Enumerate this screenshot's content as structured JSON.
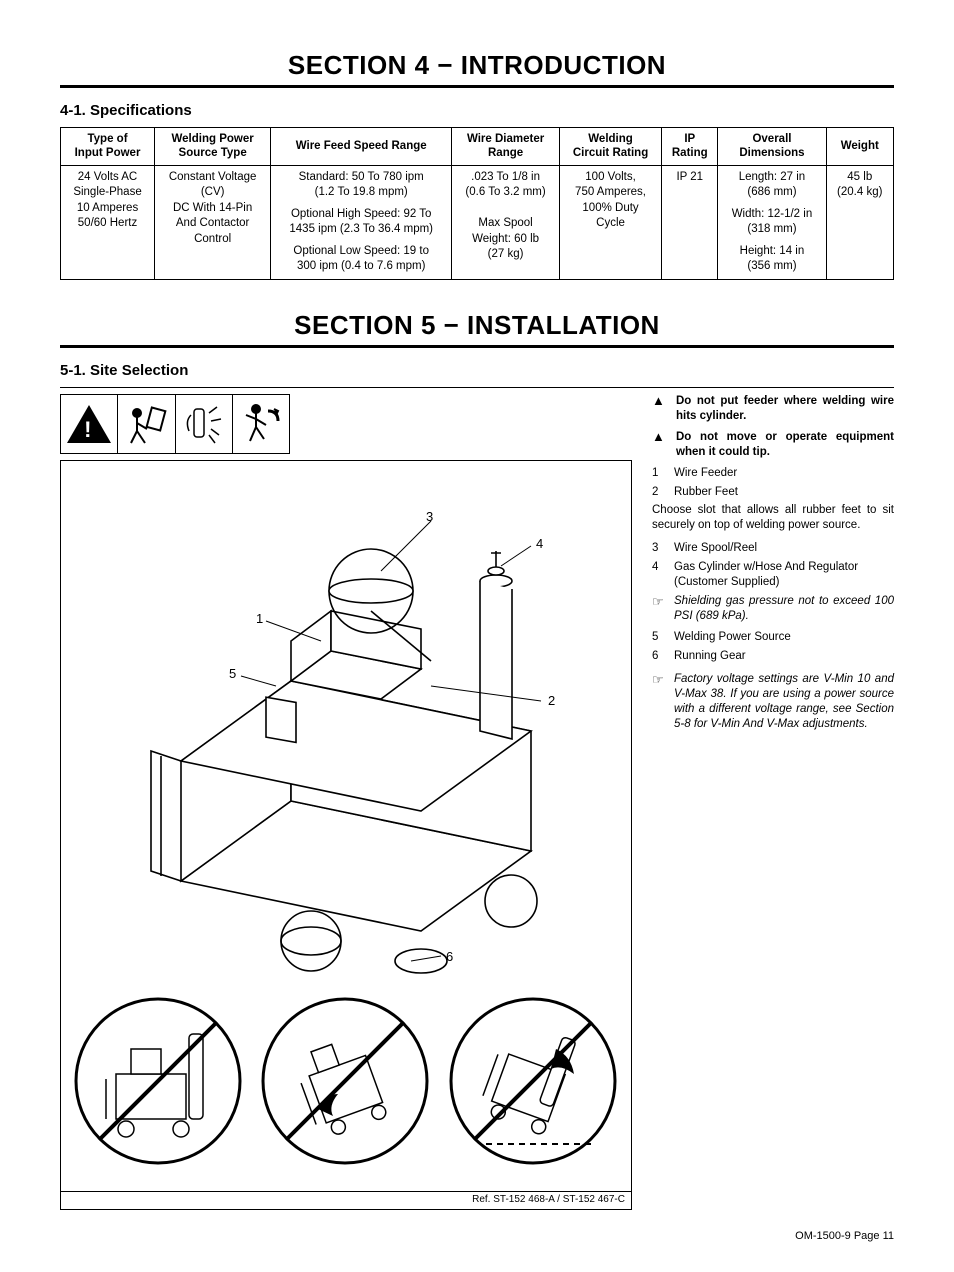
{
  "section4": {
    "title": "SECTION 4 − INTRODUCTION",
    "sub": "4-1.   Specifications"
  },
  "spec_table": {
    "headers": [
      "Type of\nInput Power",
      "Welding Power\nSource Type",
      "Wire Feed Speed Range",
      "Wire Diameter\nRange",
      "Welding\nCircuit Rating",
      "IP\nRating",
      "Overall\nDimensions",
      "Weight"
    ],
    "row": {
      "input_power": "24 Volts AC\nSingle-Phase\n10 Amperes\n50/60 Hertz",
      "source_type": "Constant Voltage\n(CV)\nDC With 14-Pin\nAnd Contactor\nControl",
      "feed1": "Standard: 50 To 780 ipm\n(1.2 To 19.8 mpm)",
      "feed2": "Optional High Speed: 92 To\n1435 ipm (2.3 To 36.4 mpm)",
      "feed3": "Optional Low Speed: 19 to\n300 ipm (0.4 to 7.6 mpm)",
      "wire_dia": ".023 To 1/8 in\n(0.6 To 3.2 mm)\n\nMax Spool\nWeight: 60 lb\n(27 kg)",
      "circuit": "100 Volts,\n750 Amperes,\n100% Duty\nCycle",
      "ip": "IP 21",
      "dim1": "Length: 27 in\n(686 mm)",
      "dim2": "Width: 12-1/2 in\n(318 mm)",
      "dim3": "Height: 14 in\n(356 mm)",
      "weight": "45 lb\n(20.4 kg)"
    }
  },
  "section5": {
    "title": "SECTION 5 − INSTALLATION",
    "sub": "5-1.   Site Selection"
  },
  "side": {
    "warn1": "Do not put feeder where welding wire hits cylinder.",
    "warn2": "Do not move or operate equipment when it could tip.",
    "items": {
      "n1": "1",
      "t1": "Wire Feeder",
      "n2": "2",
      "t2": "Rubber Feet"
    },
    "para1": "Choose slot that allows all rubber feet to sit securely on top of welding power source.",
    "items2": {
      "n3": "3",
      "t3": "Wire Spool/Reel",
      "n4": "4",
      "t4": "Gas Cylinder w/Hose And Regulator (Customer Supplied)"
    },
    "note1": "Shielding gas pressure not to exceed 100 PSI (689 kPa).",
    "items3": {
      "n5": "5",
      "t5": "Welding Power Source",
      "n6": "6",
      "t6": "Running Gear"
    },
    "note2": "Factory voltage settings are V-Min 10 and V-Max 38. If you are using a power source with a different voltage range, see Section 5-8 for V-Min And V-Max adjustments."
  },
  "callouts": {
    "c1": "1",
    "c2": "2",
    "c3": "3",
    "c4": "4",
    "c5": "5",
    "c6": "6"
  },
  "ref": "Ref. ST-152 468-A / ST-152 467-C",
  "footer": "OM-1500-9 Page 11",
  "icon_alt": {
    "tip": "⚠",
    "spark": "※",
    "move": "↯"
  }
}
